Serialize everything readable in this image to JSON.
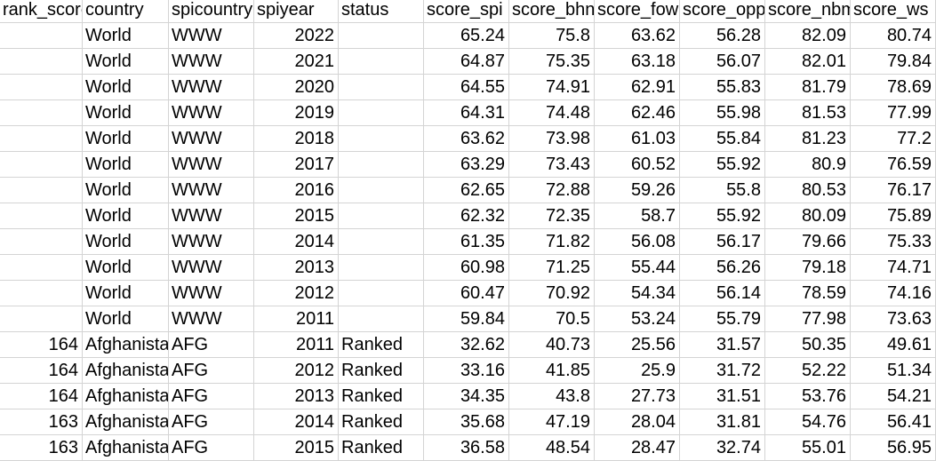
{
  "sheet": {
    "columns": [
      "rank_score_spi",
      "country",
      "spicountrycode",
      "spiyear",
      "status",
      "score_spi",
      "score_bhn",
      "score_fow",
      "score_opp",
      "score_nbmn",
      "score_ws"
    ],
    "rows": [
      [
        "",
        "World",
        "WWW",
        "2022",
        "",
        "65.24",
        "75.8",
        "63.62",
        "56.28",
        "82.09",
        "80.74"
      ],
      [
        "",
        "World",
        "WWW",
        "2021",
        "",
        "64.87",
        "75.35",
        "63.18",
        "56.07",
        "82.01",
        "79.84"
      ],
      [
        "",
        "World",
        "WWW",
        "2020",
        "",
        "64.55",
        "74.91",
        "62.91",
        "55.83",
        "81.79",
        "78.69"
      ],
      [
        "",
        "World",
        "WWW",
        "2019",
        "",
        "64.31",
        "74.48",
        "62.46",
        "55.98",
        "81.53",
        "77.99"
      ],
      [
        "",
        "World",
        "WWW",
        "2018",
        "",
        "63.62",
        "73.98",
        "61.03",
        "55.84",
        "81.23",
        "77.2"
      ],
      [
        "",
        "World",
        "WWW",
        "2017",
        "",
        "63.29",
        "73.43",
        "60.52",
        "55.92",
        "80.9",
        "76.59"
      ],
      [
        "",
        "World",
        "WWW",
        "2016",
        "",
        "62.65",
        "72.88",
        "59.26",
        "55.8",
        "80.53",
        "76.17"
      ],
      [
        "",
        "World",
        "WWW",
        "2015",
        "",
        "62.32",
        "72.35",
        "58.7",
        "55.92",
        "80.09",
        "75.89"
      ],
      [
        "",
        "World",
        "WWW",
        "2014",
        "",
        "61.35",
        "71.82",
        "56.08",
        "56.17",
        "79.66",
        "75.33"
      ],
      [
        "",
        "World",
        "WWW",
        "2013",
        "",
        "60.98",
        "71.25",
        "55.44",
        "56.26",
        "79.18",
        "74.71"
      ],
      [
        "",
        "World",
        "WWW",
        "2012",
        "",
        "60.47",
        "70.92",
        "54.34",
        "56.14",
        "78.59",
        "74.16"
      ],
      [
        "",
        "World",
        "WWW",
        "2011",
        "",
        "59.84",
        "70.5",
        "53.24",
        "55.79",
        "77.98",
        "73.63"
      ],
      [
        "164",
        "Afghanistan",
        "AFG",
        "2011",
        "Ranked",
        "32.62",
        "40.73",
        "25.56",
        "31.57",
        "50.35",
        "49.61"
      ],
      [
        "164",
        "Afghanistan",
        "AFG",
        "2012",
        "Ranked",
        "33.16",
        "41.85",
        "25.9",
        "31.72",
        "52.22",
        "51.34"
      ],
      [
        "164",
        "Afghanistan",
        "AFG",
        "2013",
        "Ranked",
        "34.35",
        "43.8",
        "27.73",
        "31.51",
        "53.76",
        "54.21"
      ],
      [
        "163",
        "Afghanistan",
        "AFG",
        "2014",
        "Ranked",
        "35.68",
        "47.19",
        "28.04",
        "31.81",
        "54.76",
        "56.41"
      ],
      [
        "163",
        "Afghanistan",
        "AFG",
        "2015",
        "Ranked",
        "36.58",
        "48.54",
        "28.47",
        "32.74",
        "55.01",
        "56.95"
      ]
    ]
  }
}
